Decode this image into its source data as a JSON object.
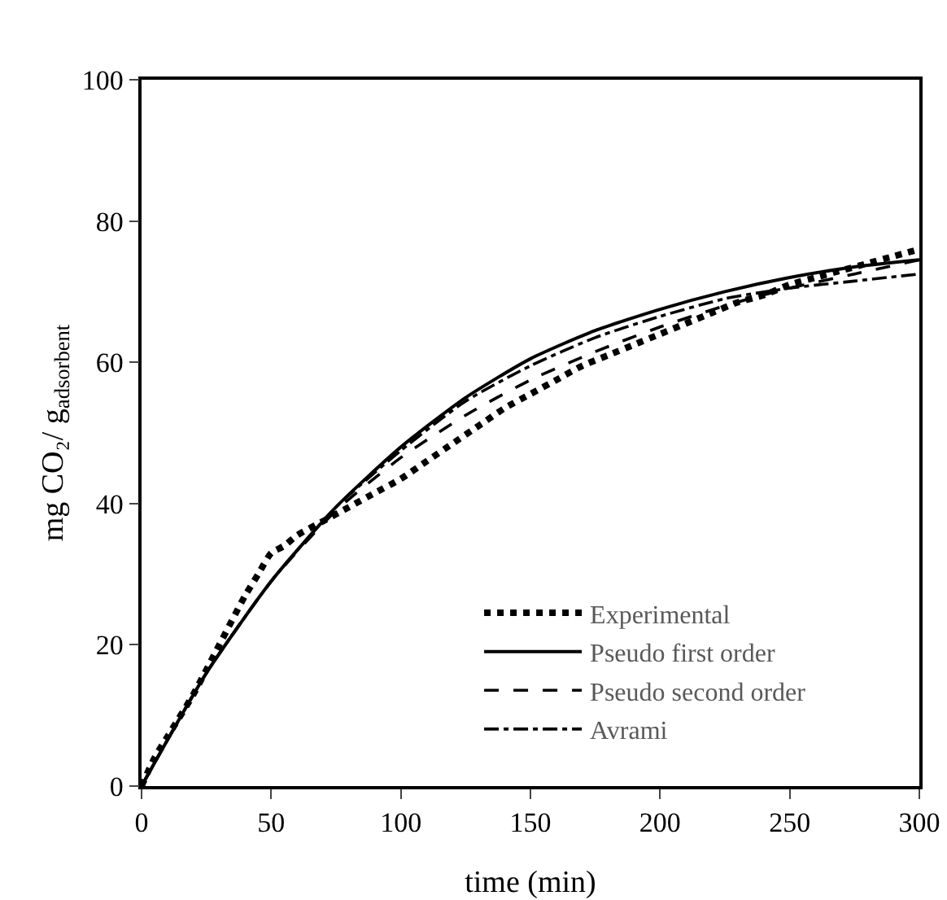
{
  "chart_data": {
    "type": "line",
    "xlabel": "time (min)",
    "ylabel": "mg CO₂/ g$_{adsorbent}$",
    "xlim": [
      0,
      300
    ],
    "xticks": [
      0,
      50,
      100,
      150,
      200,
      250,
      300
    ],
    "ylim": [
      0,
      100
    ],
    "yticks": [
      0,
      20,
      40,
      60,
      80,
      100
    ],
    "grid": false,
    "legend": "bottom right",
    "series": [
      {
        "name": "Experimental",
        "color": "#000000",
        "line_style": "dotted",
        "x": [
          0,
          5,
          10,
          20,
          30,
          40,
          45,
          50,
          55,
          60,
          70,
          80,
          90,
          100,
          110,
          120,
          130,
          140,
          150,
          160,
          170,
          180,
          190,
          200,
          210,
          220,
          230,
          240,
          250,
          260,
          270,
          280,
          290,
          300
        ],
        "values": [
          0,
          4,
          7,
          13,
          20,
          27,
          30,
          33,
          34,
          35.5,
          37.5,
          39.5,
          41.5,
          43.5,
          46,
          48.5,
          51,
          53.5,
          55.5,
          57.5,
          59.5,
          61,
          62.5,
          64,
          65.5,
          67,
          68.5,
          69.5,
          71,
          72,
          73,
          74,
          75,
          76
        ]
      },
      {
        "name": "Pseudo first order",
        "color": "#000000",
        "line_style": "solid",
        "x": [
          0,
          25,
          50,
          75,
          100,
          125,
          150,
          175,
          200,
          225,
          250,
          275,
          300
        ],
        "values": [
          0,
          16,
          29,
          39.5,
          48,
          55,
          60.5,
          64.5,
          67.5,
          70,
          72,
          73.5,
          74.5
        ]
      },
      {
        "name": "Pseudo second order",
        "color": "#000000",
        "line_style": "dashed",
        "x": [
          0,
          25,
          50,
          75,
          100,
          125,
          150,
          175,
          200,
          225,
          250,
          275,
          300
        ],
        "values": [
          0,
          16,
          29,
          39,
          46.5,
          52.5,
          57.5,
          61.5,
          65,
          68,
          70.5,
          72.5,
          74.5
        ]
      },
      {
        "name": "Avrami",
        "color": "#000000",
        "line_style": "dashdot",
        "x": [
          0,
          25,
          50,
          75,
          100,
          125,
          150,
          175,
          200,
          225,
          250,
          275,
          300
        ],
        "values": [
          0,
          16,
          29,
          39.5,
          47.5,
          54.5,
          59.5,
          63.5,
          66.5,
          69,
          70.5,
          71.5,
          72.5
        ]
      }
    ]
  }
}
